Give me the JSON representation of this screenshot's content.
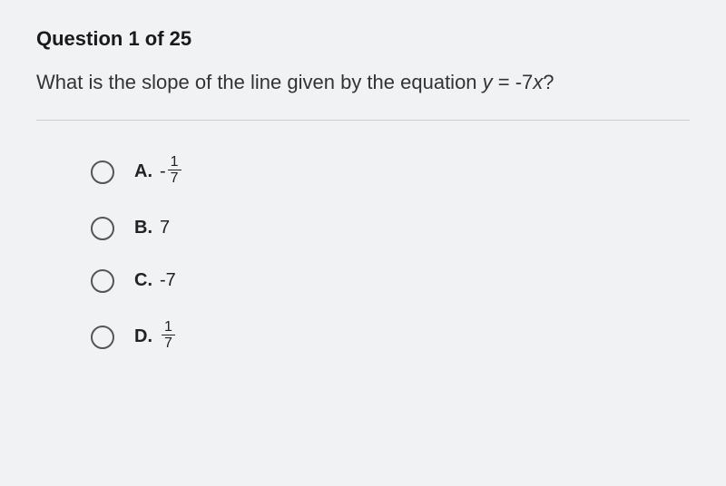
{
  "header": {
    "label": "Question 1 of 25"
  },
  "question": {
    "prefix": "What is the slope of the line given by the equation ",
    "equation_lhs": "y",
    "equation_eq": " = ",
    "equation_rhs": "-7",
    "equation_var": "x",
    "suffix": "?"
  },
  "options": [
    {
      "letter": "A.",
      "type": "fraction",
      "sign": "-",
      "numerator": "1",
      "denominator": "7"
    },
    {
      "letter": "B.",
      "type": "plain",
      "value": "7"
    },
    {
      "letter": "C.",
      "type": "plain",
      "value": "-7"
    },
    {
      "letter": "D.",
      "type": "fraction",
      "sign": "",
      "numerator": "1",
      "denominator": "7"
    }
  ],
  "styling": {
    "background_color": "#f0f2f4",
    "text_color": "#2a2a2a",
    "divider_color": "#c8ccd0",
    "radio_border_color": "#555555",
    "header_fontsize": 22,
    "question_fontsize": 22,
    "option_fontsize": 20
  }
}
